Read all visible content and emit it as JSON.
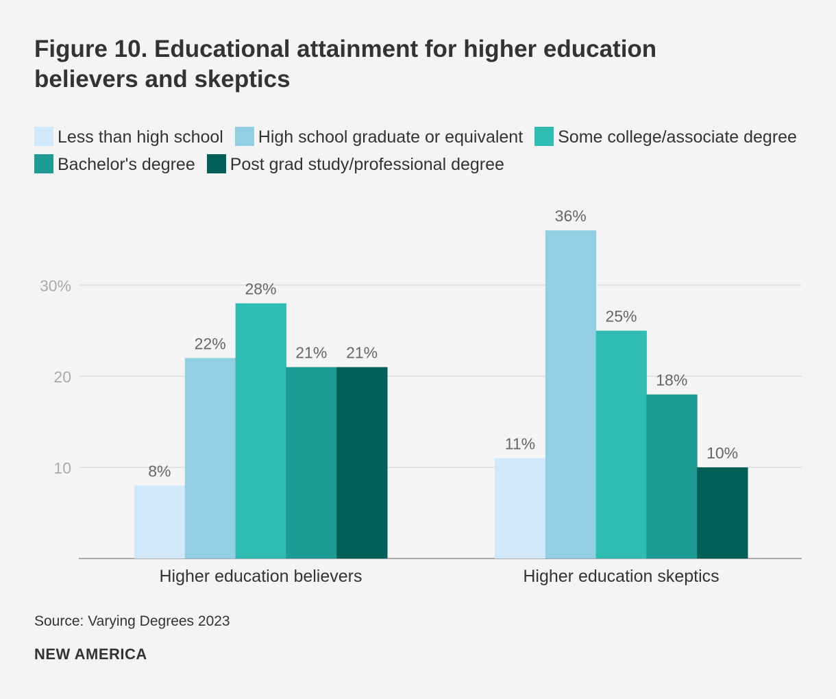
{
  "title": "Figure 10. Educational attainment for higher education believers and skeptics",
  "source": "Source: Varying Degrees 2023",
  "brand": "NEW AMERICA",
  "colors": {
    "background": "#f4f4f4",
    "gridline": "#dddddd",
    "baseline": "#aaaaaa",
    "tick_text": "#aaaaaa",
    "label_text": "#666666"
  },
  "chart_data": {
    "type": "bar",
    "title": "Figure 10. Educational attainment for higher education believers and skeptics",
    "categories": [
      "Higher education believers",
      "Higher education skeptics"
    ],
    "ylim": [
      0,
      40
    ],
    "yticks": [
      10,
      20,
      30
    ],
    "ytick_labels": [
      "10",
      "20",
      "30%"
    ],
    "grid": true,
    "legend_position": "top",
    "series": [
      {
        "name": "Less than high school",
        "color": "#d1e8fa",
        "values": [
          8,
          11
        ],
        "labels": [
          "8%",
          "11%"
        ]
      },
      {
        "name": "High school graduate or equivalent",
        "color": "#92cfe3",
        "values": [
          22,
          36
        ],
        "labels": [
          "22%",
          "36%"
        ]
      },
      {
        "name": "Some college/associate degree",
        "color": "#2fbcb3",
        "values": [
          28,
          25
        ],
        "labels": [
          "28%",
          "25%"
        ]
      },
      {
        "name": "Bachelor's degree",
        "color": "#1e9c93",
        "values": [
          21,
          18
        ],
        "labels": [
          "21%",
          "18%"
        ]
      },
      {
        "name": "Post grad study/professional degree",
        "color": "#005f56",
        "values": [
          21,
          10
        ],
        "labels": [
          "21%",
          "10%"
        ]
      }
    ]
  }
}
